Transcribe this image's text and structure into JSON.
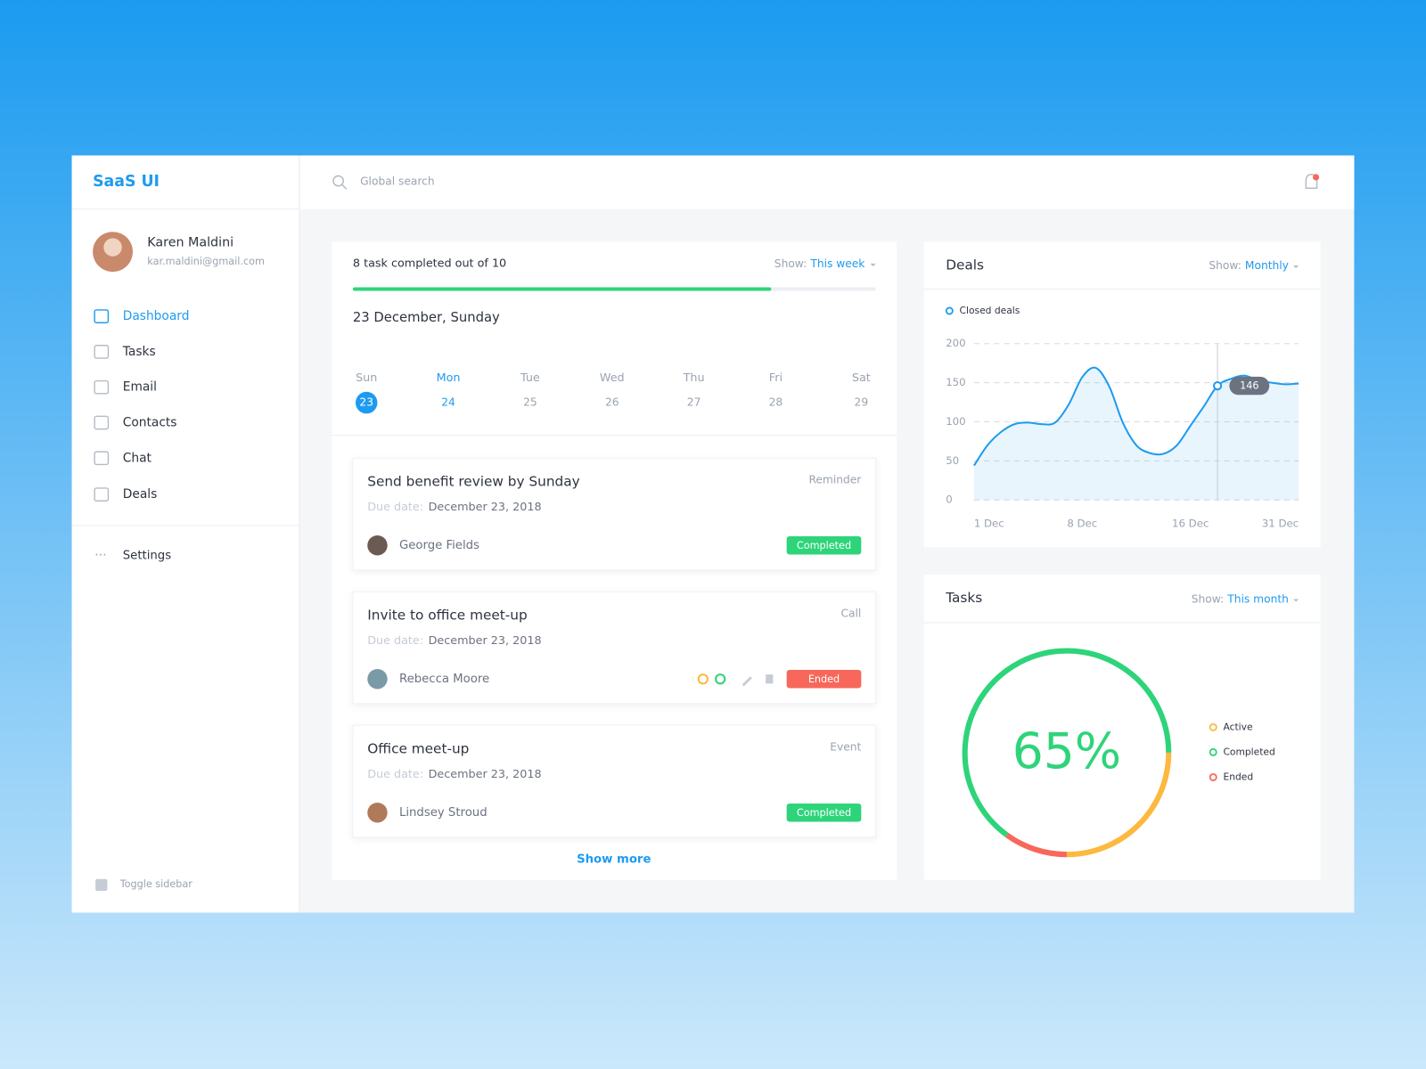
{
  "sidebar": {
    "brand": "SaaS UI",
    "user": {
      "name": "Karen Maldini",
      "email": "kar.maldini@gmail.com"
    },
    "nav": [
      "Dashboard",
      "Tasks",
      "Email",
      "Contacts",
      "Chat",
      "Deals"
    ],
    "settings": "Settings",
    "toggle": "Toggle sidebar"
  },
  "topbar": {
    "search_placeholder": "Global search"
  },
  "progress": {
    "title": "8 task completed out of 10",
    "completed": 8,
    "total": 10,
    "show_label": "Show:",
    "show_value": "This week",
    "date": "23 December, Sunday",
    "days": [
      {
        "name": "Sun",
        "date": 23
      },
      {
        "name": "Mon",
        "date": 24
      },
      {
        "name": "Tue",
        "date": 25
      },
      {
        "name": "Wed",
        "date": 26
      },
      {
        "name": "Thu",
        "date": 27
      },
      {
        "name": "Fri",
        "date": 28
      },
      {
        "name": "Sat",
        "date": 29
      }
    ]
  },
  "tasks": [
    {
      "title": "Send benefit review by Sunday",
      "type": "Reminder",
      "due_label": "Due date:",
      "due": "December 23, 2018",
      "person": "George Fields",
      "status": "Completed"
    },
    {
      "title": "Invite to office meet-up",
      "type": "Call",
      "due_label": "Due date:",
      "due": "December 23, 2018",
      "person": "Rebecca Moore",
      "status": "Ended"
    },
    {
      "title": "Office meet-up",
      "type": "Event",
      "due_label": "Due date:",
      "due": "December 23, 2018",
      "person": "Lindsey Stroud",
      "status": "Completed"
    }
  ],
  "show_more": "Show more",
  "deals": {
    "title": "Deals",
    "show_label": "Show:",
    "show_value": "Monthly",
    "chart_data": {
      "type": "line",
      "categories": [
        "1 Dec",
        null,
        null,
        null,
        null,
        null,
        null,
        null,
        "8 Dec",
        null,
        null,
        null,
        null,
        null,
        null,
        null,
        "16 Dec",
        null,
        null,
        null,
        null,
        null,
        null,
        null,
        "31 Dec"
      ],
      "series": [
        {
          "name": "Closed deals",
          "color": "#1d9bf0",
          "values": [
            44,
            70,
            87,
            97,
            99,
            97,
            99,
            122,
            157,
            169,
            145,
            99,
            70,
            60,
            59,
            70,
            95,
            120,
            146,
            155,
            159,
            153,
            150,
            148,
            149
          ]
        }
      ],
      "ylim": [
        0,
        200
      ],
      "yticks": [
        0,
        50,
        100,
        150,
        200
      ],
      "grid": true
    }
  },
  "tasks_panel": {
    "title": "Tasks",
    "show_label": "Show:",
    "show_value": "This month",
    "chart_data": {
      "type": "donut",
      "center_label": "65%",
      "categories": [
        "Active",
        "Completed",
        "Ended"
      ],
      "values": [
        25,
        65,
        10
      ],
      "colors": [
        "#fdb840",
        "#2ed47a",
        "#f7685b"
      ]
    }
  }
}
